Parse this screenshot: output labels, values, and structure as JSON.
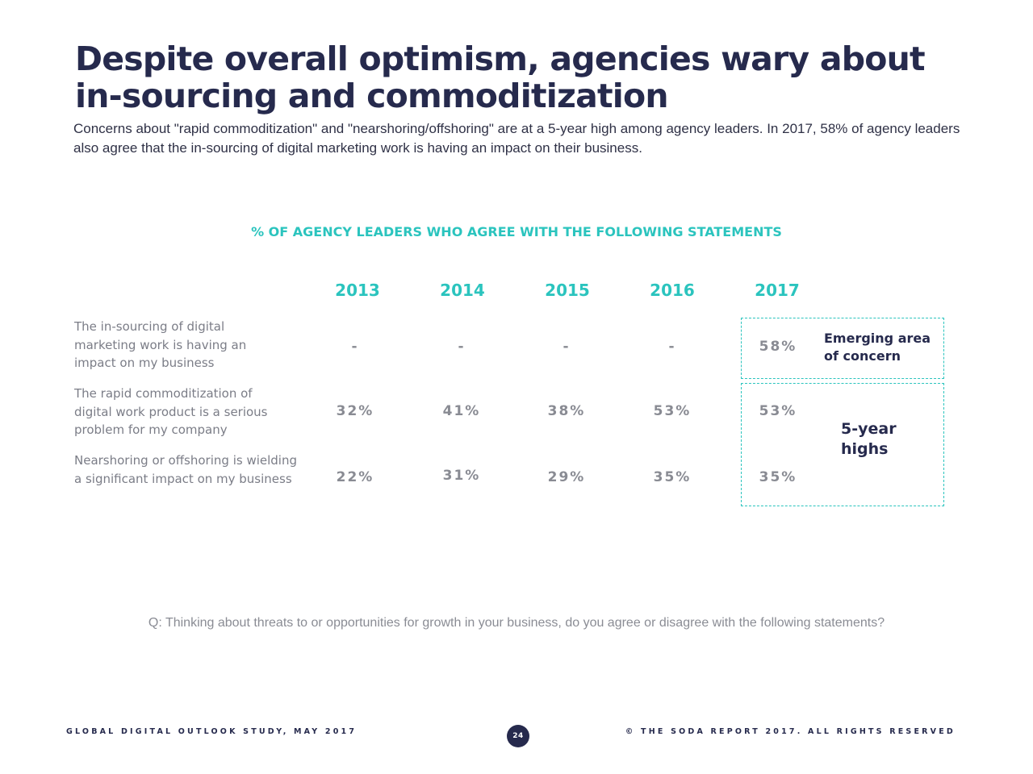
{
  "title": "Despite overall optimism, agencies wary about in-sourcing and commoditization",
  "subtitle": "Concerns about \"rapid commoditization\" and \"nearshoring/offshoring\" are at a 5-year high among agency leaders. In 2017, 58% of agency leaders also agree that the in-sourcing of digital marketing work is having an impact on their business.",
  "chart_data": {
    "type": "table",
    "title": "% OF AGENCY LEADERS WHO AGREE WITH THE FOLLOWING STATEMENTS",
    "columns": [
      "2013",
      "2014",
      "2015",
      "2016",
      "2017"
    ],
    "rows": [
      {
        "label": "The in-sourcing of digital marketing work is having an impact on my business",
        "values": [
          "-",
          "-",
          "-",
          "-",
          "58%"
        ]
      },
      {
        "label": "The rapid commoditization of digital work product is a serious problem for my company",
        "values": [
          "32%",
          "41%",
          "38%",
          "53%",
          "53%"
        ]
      },
      {
        "label": "Nearshoring or offshoring is wielding a significant impact on my business",
        "values": [
          "22%",
          "31%",
          "29%",
          "35%",
          "35%"
        ]
      }
    ],
    "annotations": [
      {
        "text": "Emerging area of concern"
      },
      {
        "text": "5-year highs"
      }
    ],
    "highlight_color": "#2bc4be"
  },
  "question": "Q: Thinking about threats to or opportunities for growth in your business, do you agree or disagree with the following statements?",
  "footer": {
    "left": "GLOBAL DIGITAL OUTLOOK STUDY, MAY 2017",
    "page": "24",
    "right": "© THE SODA REPORT 2017. ALL RIGHTS RESERVED"
  },
  "colors": {
    "navy": "#262a4d",
    "teal": "#2bc4be",
    "gray": "#898b93"
  }
}
